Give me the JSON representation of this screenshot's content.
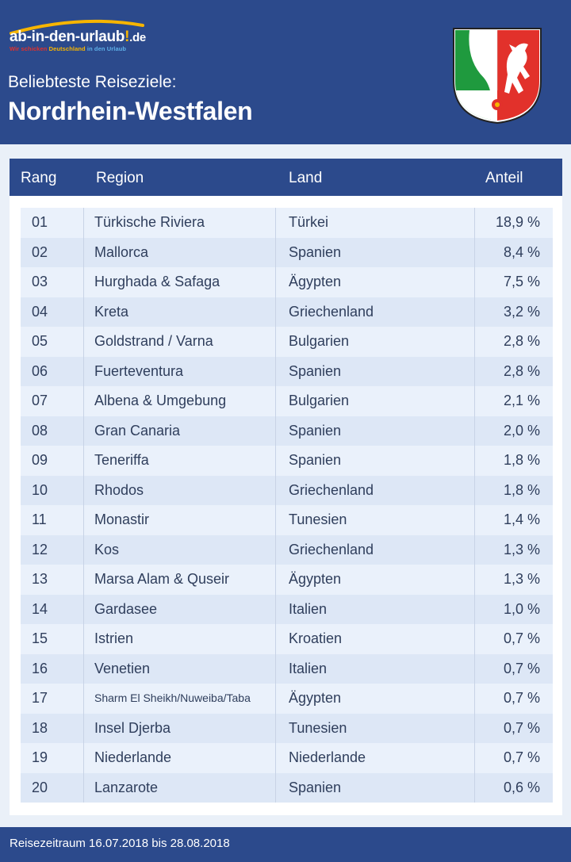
{
  "logo": {
    "name": "ab-in-den-urlaub",
    "exclamation": "!",
    "tld": ".de",
    "tagline_part1": "Wir schicken ",
    "tagline_part2": "Deutschland",
    "tagline_part3": " in den Urlaub",
    "arc_color": "#f7b500"
  },
  "header": {
    "subtitle": "Beliebteste Reiseziele:",
    "title": "Nordrhein-Westfalen",
    "background": "#2c4a8c"
  },
  "crest": {
    "icon": "nrw-coat-of-arms-icon",
    "colors": {
      "green": "#1f9a3e",
      "red": "#e2312b",
      "white": "#ffffff"
    }
  },
  "table": {
    "headers": {
      "rang": "Rang",
      "region": "Region",
      "land": "Land",
      "anteil": "Anteil"
    },
    "rows": [
      {
        "rang": "01",
        "region": "Türkische Riviera",
        "land": "Türkei",
        "anteil": "18,9 %"
      },
      {
        "rang": "02",
        "region": "Mallorca",
        "land": "Spanien",
        "anteil": "8,4 %"
      },
      {
        "rang": "03",
        "region": "Hurghada & Safaga",
        "land": "Ägypten",
        "anteil": "7,5 %"
      },
      {
        "rang": "04",
        "region": "Kreta",
        "land": "Griechenland",
        "anteil": "3,2 %"
      },
      {
        "rang": "05",
        "region": "Goldstrand / Varna",
        "land": "Bulgarien",
        "anteil": "2,8 %"
      },
      {
        "rang": "06",
        "region": "Fuerteventura",
        "land": "Spanien",
        "anteil": "2,8 %"
      },
      {
        "rang": "07",
        "region": "Albena & Umgebung",
        "land": "Bulgarien",
        "anteil": "2,1 %"
      },
      {
        "rang": "08",
        "region": "Gran Canaria",
        "land": "Spanien",
        "anteil": "2,0 %"
      },
      {
        "rang": "09",
        "region": "Teneriffa",
        "land": "Spanien",
        "anteil": "1,8 %"
      },
      {
        "rang": "10",
        "region": "Rhodos",
        "land": "Griechenland",
        "anteil": "1,8 %"
      },
      {
        "rang": "11",
        "region": "Monastir",
        "land": "Tunesien",
        "anteil": "1,4 %"
      },
      {
        "rang": "12",
        "region": "Kos",
        "land": "Griechenland",
        "anteil": "1,3 %"
      },
      {
        "rang": "13",
        "region": "Marsa Alam & Quseir",
        "land": "Ägypten",
        "anteil": "1,3 %"
      },
      {
        "rang": "14",
        "region": "Gardasee",
        "land": "Italien",
        "anteil": "1,0 %"
      },
      {
        "rang": "15",
        "region": "Istrien",
        "land": "Kroatien",
        "anteil": "0,7 %"
      },
      {
        "rang": "16",
        "region": "Venetien",
        "land": "Italien",
        "anteil": "0,7 %"
      },
      {
        "rang": "17",
        "region": "Sharm El Sheikh/Nuweiba/Taba",
        "land": "Ägypten",
        "anteil": "0,7 %"
      },
      {
        "rang": "18",
        "region": "Insel Djerba",
        "land": "Tunesien",
        "anteil": "0,7 %"
      },
      {
        "rang": "19",
        "region": "Niederlande",
        "land": "Niederlande",
        "anteil": "0,7 %"
      },
      {
        "rang": "20",
        "region": "Lanzarote",
        "land": "Spanien",
        "anteil": "0,6 %"
      }
    ]
  },
  "footer": {
    "text": "Reisezeitraum 16.07.2018 bis 28.08.2018"
  }
}
